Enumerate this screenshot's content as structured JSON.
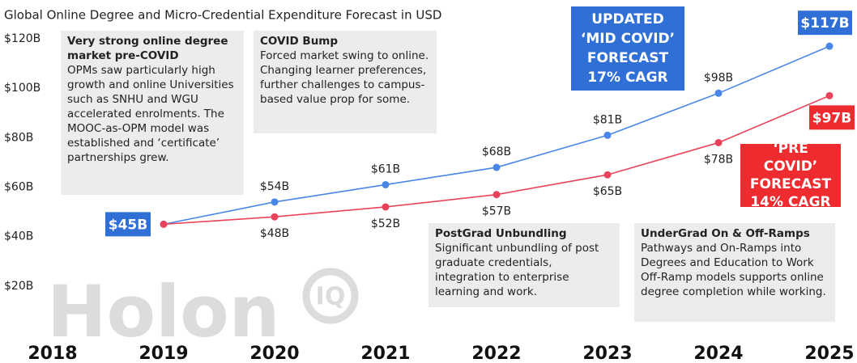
{
  "chart_data": {
    "type": "line",
    "title": "Global Online Degree and Micro-Credential Expenditure Forecast in USD",
    "categories": [
      "2018",
      "2019",
      "2020",
      "2021",
      "2022",
      "2023",
      "2024",
      "2025"
    ],
    "ylim": [
      0,
      120
    ],
    "yticks": [
      {
        "value": 20,
        "label": "$20B"
      },
      {
        "value": 40,
        "label": "$40B"
      },
      {
        "value": 60,
        "label": "$60B"
      },
      {
        "value": 80,
        "label": "$80B"
      },
      {
        "value": 100,
        "label": "$100B"
      },
      {
        "value": 120,
        "label": "$120B"
      }
    ],
    "series": [
      {
        "name": "UPDATED ‘MID COVID’ FORECAST 17% CAGR",
        "color": "#4a86e8",
        "values": [
          null,
          45,
          54,
          61,
          68,
          81,
          98,
          117
        ],
        "value_labels": [
          null,
          "$45B",
          "$54B",
          "$61B",
          "$68B",
          "$81B",
          "$98B",
          "$117B"
        ]
      },
      {
        "name": "‘PRE COVID’ FORECAST 14% CAGR",
        "color": "#e8435a",
        "values": [
          null,
          45,
          48,
          52,
          57,
          65,
          78,
          97
        ],
        "value_labels": [
          null,
          null,
          "$48B",
          "$52B",
          "$57B",
          "$65B",
          "$78B",
          "$97B"
        ]
      }
    ],
    "annotations": [
      {
        "title": "Very strong online degree market pre-COVID",
        "text": "OPMs saw particularly high growth and online Universities such as SNHU and WGU accelerated enrolments. The MOOC-as-OPM model was established and ‘certificate’ partnerships grew."
      },
      {
        "title": "COVID Bump",
        "text": "Forced market swing to online. Changing learner preferences, further challenges to campus-based value prop for some."
      },
      {
        "title": "PostGrad Unbundling",
        "text": "Significant unbundling of post graduate credentials, integration to enterprise learning and work."
      },
      {
        "title": "UnderGrad On & Off-Ramps",
        "text": "Pathways and On-Ramps into Degrees and Education to Work Off-Ramp models supports online degree completion while working."
      }
    ],
    "watermark": "Holon",
    "watermark_mark": "IQ"
  }
}
